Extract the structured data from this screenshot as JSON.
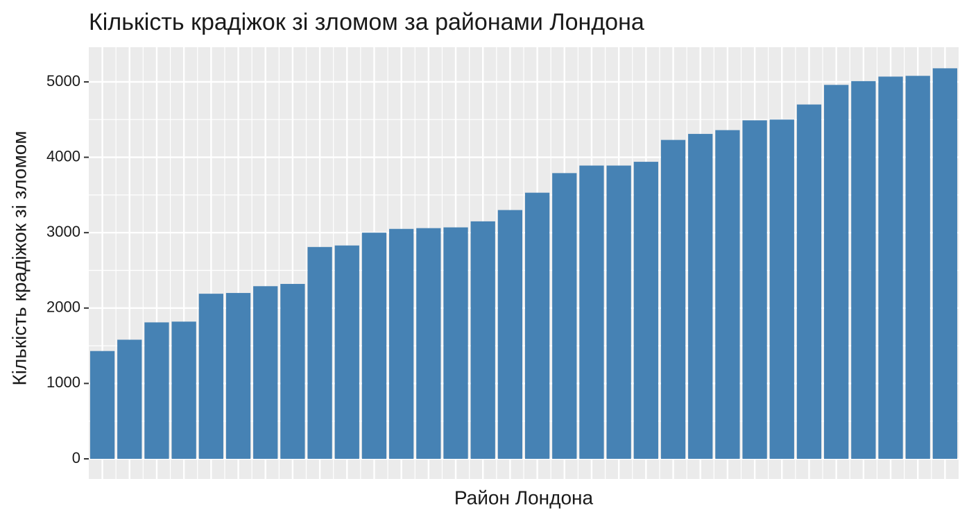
{
  "chart_data": {
    "type": "bar",
    "title": "Кількість крадіжок зі зломом за районами Лондона",
    "x_label": "Район Лондона",
    "y_label": "Кількість крадіжок зі зломом",
    "categories": [
      null,
      null,
      null,
      null,
      null,
      null,
      null,
      null,
      null,
      null,
      null,
      null,
      null,
      null,
      null,
      null,
      null,
      null,
      null,
      null,
      null,
      null,
      null,
      null,
      null,
      null,
      null,
      null,
      null,
      null,
      null,
      null
    ],
    "values": [
      1430,
      1580,
      1810,
      1820,
      2190,
      2200,
      2290,
      2320,
      2810,
      2830,
      3000,
      3050,
      3060,
      3070,
      3150,
      3300,
      3530,
      3790,
      3890,
      3890,
      3940,
      4230,
      4310,
      4360,
      4490,
      4500,
      4700,
      4960,
      5010,
      5070,
      5080,
      5180
    ],
    "color": "#4682b4",
    "ylim": [
      -267,
      5460
    ],
    "yticks": [
      0,
      1000,
      2000,
      3000,
      4000,
      5000
    ],
    "grid": true
  }
}
